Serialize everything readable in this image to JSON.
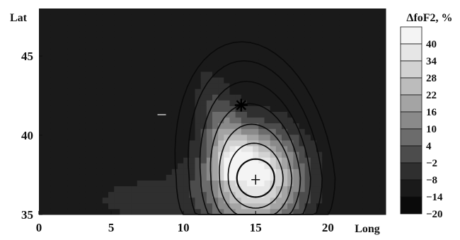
{
  "chart_data": {
    "type": "heatmap",
    "title": "",
    "xlabel": "Long",
    "ylabel": "Lat",
    "xlim": [
      0,
      24
    ],
    "ylim": [
      35,
      48
    ],
    "x_ticks": [
      {
        "value": 0,
        "label": "0"
      },
      {
        "value": 5,
        "label": "5"
      },
      {
        "value": 10,
        "label": "10"
      },
      {
        "value": 15,
        "label": "15"
      },
      {
        "value": 20,
        "label": "20"
      }
    ],
    "y_ticks": [
      {
        "value": 35,
        "label": "35"
      },
      {
        "value": 40,
        "label": "40"
      },
      {
        "value": 45,
        "label": "45"
      }
    ],
    "colorbar": {
      "title": "ΔfoF2, %",
      "levels": [
        "40",
        "34",
        "28",
        "22",
        "16",
        "10",
        "4",
        "−2",
        "−8",
        "−14",
        "−20"
      ],
      "colors": [
        "#f4f4f4",
        "#e6e6e6",
        "#d2d2d2",
        "#bcbcbc",
        "#a4a4a4",
        "#8a8a8a",
        "#6c6c6c",
        "#4c4c4c",
        "#2f2f2f",
        "#1a1a1a",
        "#0a0a0a"
      ]
    },
    "field": {
      "background": -14,
      "peak": 44,
      "peak_center": [
        15.0,
        37.3
      ],
      "markers": [
        {
          "name": "epicenter-star",
          "symbol": "*",
          "x": 14.0,
          "y": 41.9
        },
        {
          "name": "max-cross",
          "symbol": "+",
          "x": 15.0,
          "y": 37.2
        },
        {
          "name": "dash-mark",
          "symbol": "-",
          "x": 8.5,
          "y": 41.3
        }
      ]
    }
  }
}
